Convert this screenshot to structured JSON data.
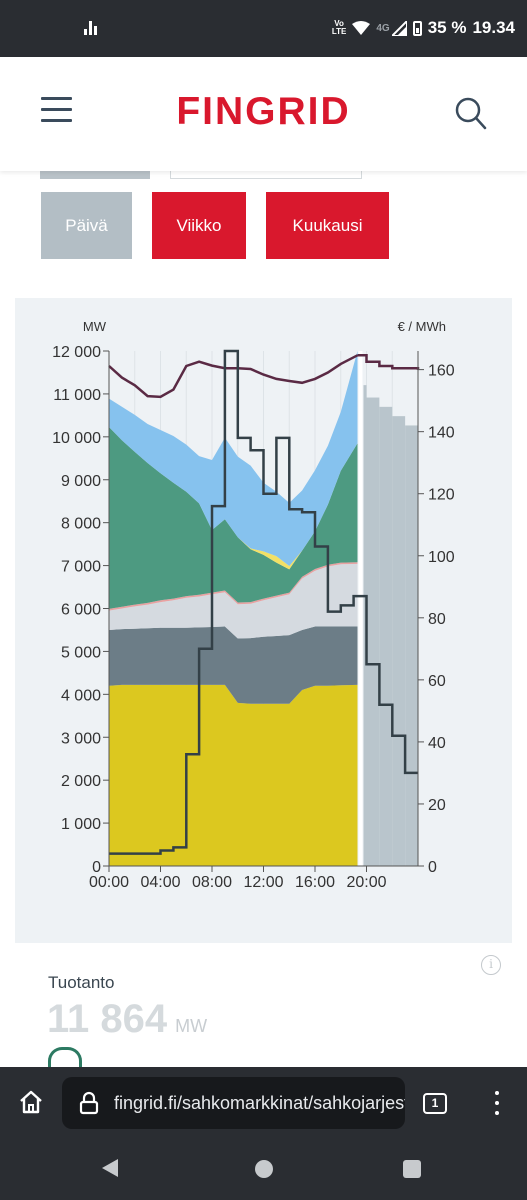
{
  "status_bar": {
    "volte": "Vo\nLTE",
    "network": "4G",
    "battery": "35 %",
    "time": "19.34"
  },
  "header": {
    "logo": "FINGRID",
    "icons": [
      "menu-icon",
      "search-icon"
    ]
  },
  "tabs": [
    {
      "label": "Päivä",
      "state": "inactive",
      "color": "#b3bec5"
    },
    {
      "label": "Viikko",
      "state": "active",
      "color": "#d9182d"
    },
    {
      "label": "Kuukausi",
      "state": "active",
      "color": "#d9182d"
    }
  ],
  "chart_data": {
    "type": "area",
    "y_left": {
      "label": "MW",
      "ticks": [
        "0",
        "1 000",
        "2 000",
        "3 000",
        "4 000",
        "5 000",
        "6 000",
        "7 000",
        "8 000",
        "9 000",
        "10 000",
        "11 000",
        "12 000"
      ],
      "range": [
        0,
        12000
      ]
    },
    "y_right": {
      "label": "€ / MWh",
      "ticks": [
        "0",
        "20",
        "40",
        "60",
        "80",
        "100",
        "120",
        "140",
        "160"
      ],
      "range": [
        0,
        166
      ]
    },
    "x": {
      "ticks": [
        "00:00",
        "04:00",
        "08:00",
        "12:00",
        "16:00",
        "20:00"
      ],
      "range_hours": [
        0,
        24
      ]
    },
    "now_hour": 19.3,
    "hours": [
      0,
      1,
      2,
      3,
      4,
      5,
      6,
      7,
      8,
      9,
      10,
      11,
      12,
      13,
      14,
      15,
      16,
      17,
      18,
      19.3
    ],
    "series": [
      {
        "color": "#dcc81f",
        "values": [
          4200,
          4220,
          4220,
          4220,
          4220,
          4220,
          4220,
          4220,
          4220,
          4220,
          3800,
          3780,
          3780,
          3780,
          3780,
          4100,
          4200,
          4200,
          4210,
          4220
        ]
      },
      {
        "color": "#6c7d87",
        "values": [
          1300,
          1300,
          1310,
          1320,
          1330,
          1330,
          1330,
          1340,
          1350,
          1360,
          1500,
          1530,
          1560,
          1580,
          1600,
          1400,
          1380,
          1380,
          1370,
          1360
        ]
      },
      {
        "color": "#d5dae0",
        "values": [
          450,
          480,
          520,
          550,
          600,
          640,
          700,
          720,
          760,
          800,
          800,
          800,
          850,
          900,
          950,
          1200,
          1300,
          1400,
          1450,
          1460
        ]
      },
      {
        "color": "#e8a1a1",
        "values": [
          40,
          40,
          40,
          40,
          40,
          40,
          40,
          40,
          40,
          40,
          40,
          40,
          40,
          40,
          40,
          40,
          40,
          40,
          40,
          40
        ]
      },
      {
        "color": "#4d9a81",
        "values": [
          4240,
          3880,
          3560,
          3260,
          2960,
          2700,
          2430,
          2130,
          1460,
          1660,
          1520,
          1230,
          1020,
          770,
          540,
          610,
          880,
          1400,
          2140,
          2770
        ]
      },
      {
        "color": "#f2e066",
        "values": [
          0,
          0,
          0,
          0,
          0,
          0,
          0,
          0,
          0,
          0,
          0,
          20,
          80,
          150,
          80,
          0,
          0,
          0,
          0,
          0
        ]
      },
      {
        "color": "#86c2ee",
        "values": [
          660,
          780,
          860,
          910,
          1010,
          1090,
          1100,
          1100,
          1630,
          1900,
          1880,
          1930,
          1600,
          1500,
          1470,
          1400,
          1420,
          1370,
          1370,
          2150
        ]
      }
    ],
    "price_line": {
      "color": "#334047",
      "hours": [
        0,
        1,
        2,
        3,
        4,
        5,
        6,
        7,
        8,
        9,
        10,
        11,
        12,
        13,
        14,
        15,
        16,
        17,
        18,
        19,
        20,
        21,
        22,
        23
      ],
      "values": [
        4,
        4,
        4,
        4,
        5,
        6,
        36,
        70,
        116,
        166,
        138,
        134,
        120,
        138,
        115,
        114,
        103,
        82,
        84,
        87,
        65,
        52,
        42,
        30
      ]
    },
    "price_forecast": {
      "color": "#b9c5cc",
      "hours": [
        19.3,
        20,
        21,
        22,
        23,
        24
      ],
      "values": [
        155,
        151,
        148,
        145,
        142,
        142
      ]
    },
    "consumption_line": {
      "color": "#5a2a44",
      "hours": [
        0,
        1,
        2,
        3,
        4,
        5,
        6,
        7,
        8,
        9,
        10,
        11,
        12,
        13,
        14,
        15,
        16,
        17,
        18,
        19.3
      ],
      "values": [
        11650,
        11380,
        11200,
        10950,
        10930,
        11100,
        11650,
        11750,
        11660,
        11600,
        11600,
        11580,
        11450,
        11350,
        11300,
        11260,
        11350,
        11500,
        11700,
        11900
      ]
    },
    "consumption_forecast": {
      "hours": [
        19.3,
        20,
        21,
        22,
        23,
        24
      ],
      "values": [
        11900,
        11750,
        11650,
        11600,
        11600,
        11560
      ]
    }
  },
  "production_card": {
    "label": "Tuotanto",
    "value": "11 864",
    "unit": "MW",
    "info_icon": "info-icon"
  },
  "browser": {
    "url": "fingrid.fi/sahkomarkkinat/sahkojarjestelman-tila",
    "tab_count": "1"
  }
}
